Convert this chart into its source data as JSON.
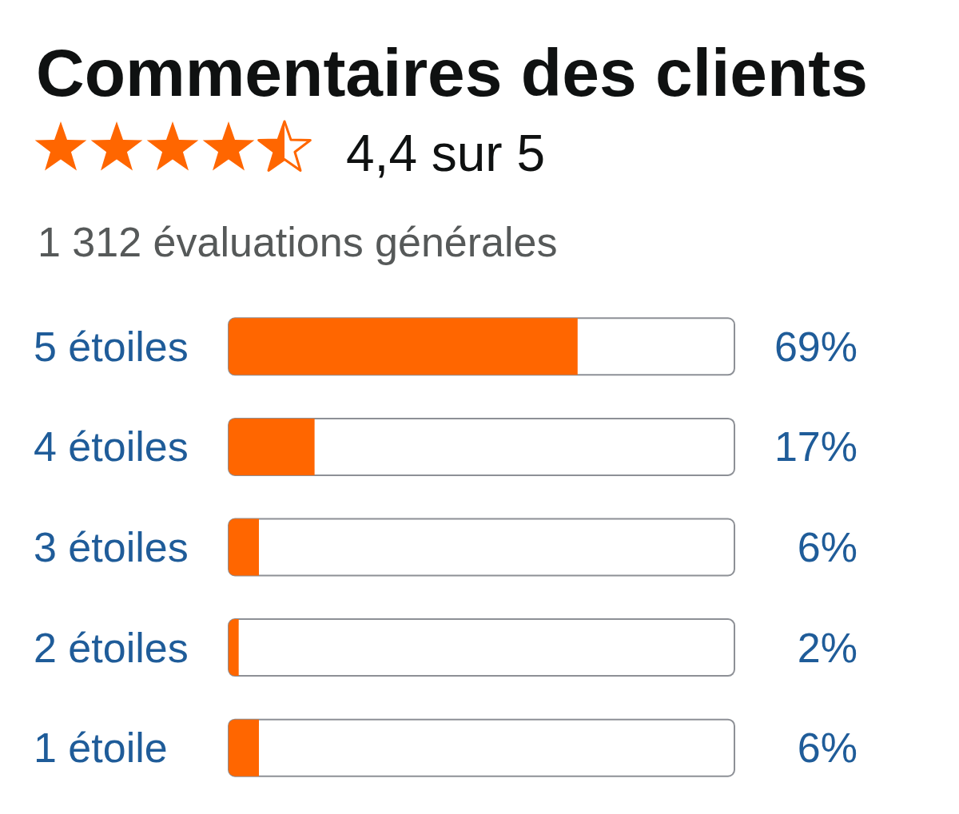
{
  "chart_data": {
    "type": "bar",
    "orientation": "horizontal",
    "title": "Commentaires des clients",
    "subtitle": "4,4 sur 5",
    "annotations": [
      "1 312 évaluations générales"
    ],
    "categories": [
      "5 étoiles",
      "4 étoiles",
      "3 étoiles",
      "2 étoiles",
      "1 étoile"
    ],
    "values": [
      69,
      17,
      6,
      2,
      6
    ],
    "value_labels": [
      "69%",
      "17%",
      "6%",
      "2%",
      "6%"
    ],
    "color": "#ff6600",
    "xlim": [
      0,
      100
    ],
    "tick_labels": "y"
  }
}
